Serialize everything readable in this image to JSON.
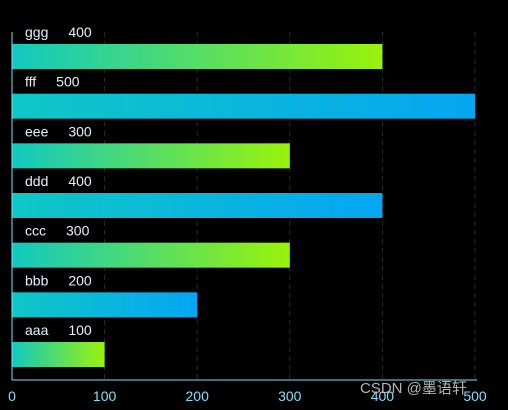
{
  "chart_data": {
    "type": "bar",
    "orientation": "horizontal",
    "categories": [
      "aaa",
      "bbb",
      "ccc",
      "ddd",
      "eee",
      "fff",
      "ggg"
    ],
    "values": [
      100,
      200,
      300,
      400,
      300,
      500,
      400
    ],
    "xlim": [
      0,
      500
    ],
    "xticks": [
      0,
      100,
      200,
      300,
      400,
      500
    ],
    "grid": "vertical dashed",
    "title": "",
    "xlabel": "",
    "ylabel": "",
    "colors": {
      "gradient_a": [
        "#11c9c1",
        "#9af20a"
      ],
      "gradient_b": [
        "#0fc7c6",
        "#05a6f2"
      ],
      "grid": "#2a2a2a",
      "axis": "#6fe9ff",
      "text": "#e6f0ff"
    }
  },
  "watermark": "CSDN @墨语轩"
}
